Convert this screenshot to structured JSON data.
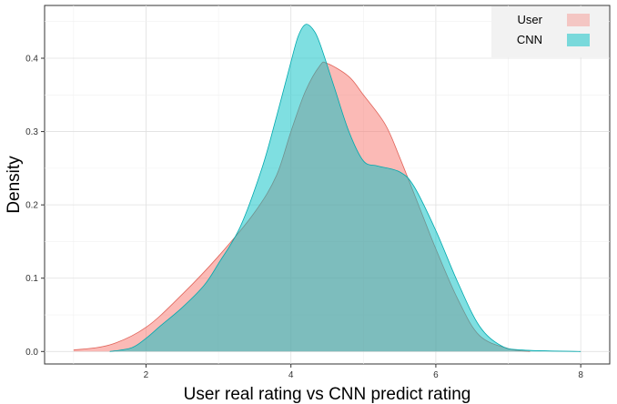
{
  "chart_data": {
    "type": "area",
    "title": "",
    "xlabel": "User real rating vs CNN predict rating",
    "ylabel": "Density",
    "xlim": [
      0.6,
      8.4
    ],
    "ylim": [
      -0.017,
      0.472
    ],
    "x_ticks": [
      2,
      4,
      6,
      8
    ],
    "x_tick_labels": [
      "2",
      "4",
      "6",
      "8"
    ],
    "y_ticks": [
      0.0,
      0.1,
      0.2,
      0.3,
      0.4
    ],
    "y_tick_labels": [
      "0.0",
      "0.1",
      "0.2",
      "0.3",
      "0.4"
    ],
    "grid": true,
    "legend_position": "top-right",
    "series": [
      {
        "name": "User",
        "fill_color": "#F8766D",
        "line_color": "#E0645A",
        "points": [
          [
            1.0,
            0.002
          ],
          [
            1.5,
            0.009
          ],
          [
            2.0,
            0.033
          ],
          [
            2.5,
            0.078
          ],
          [
            3.0,
            0.13
          ],
          [
            3.5,
            0.19
          ],
          [
            3.8,
            0.24
          ],
          [
            4.0,
            0.3
          ],
          [
            4.2,
            0.355
          ],
          [
            4.4,
            0.39
          ],
          [
            4.5,
            0.393
          ],
          [
            4.8,
            0.375
          ],
          [
            5.0,
            0.35
          ],
          [
            5.3,
            0.31
          ],
          [
            5.5,
            0.265
          ],
          [
            5.8,
            0.19
          ],
          [
            6.0,
            0.14
          ],
          [
            6.3,
            0.072
          ],
          [
            6.6,
            0.022
          ],
          [
            7.0,
            0.004
          ],
          [
            7.3,
            0.0
          ]
        ]
      },
      {
        "name": "CNN",
        "fill_color": "#00BFC4",
        "line_color": "#00A9AE",
        "points": [
          [
            1.5,
            0.0
          ],
          [
            1.8,
            0.005
          ],
          [
            2.0,
            0.018
          ],
          [
            2.2,
            0.035
          ],
          [
            2.5,
            0.06
          ],
          [
            2.8,
            0.09
          ],
          [
            3.0,
            0.12
          ],
          [
            3.3,
            0.17
          ],
          [
            3.6,
            0.25
          ],
          [
            3.8,
            0.32
          ],
          [
            4.0,
            0.395
          ],
          [
            4.1,
            0.43
          ],
          [
            4.2,
            0.446
          ],
          [
            4.3,
            0.44
          ],
          [
            4.4,
            0.42
          ],
          [
            4.6,
            0.36
          ],
          [
            4.8,
            0.3
          ],
          [
            5.0,
            0.26
          ],
          [
            5.2,
            0.253
          ],
          [
            5.5,
            0.245
          ],
          [
            5.7,
            0.225
          ],
          [
            6.0,
            0.165
          ],
          [
            6.3,
            0.095
          ],
          [
            6.6,
            0.035
          ],
          [
            6.9,
            0.008
          ],
          [
            7.2,
            0.002
          ],
          [
            8.0,
            0.0
          ]
        ]
      }
    ]
  }
}
